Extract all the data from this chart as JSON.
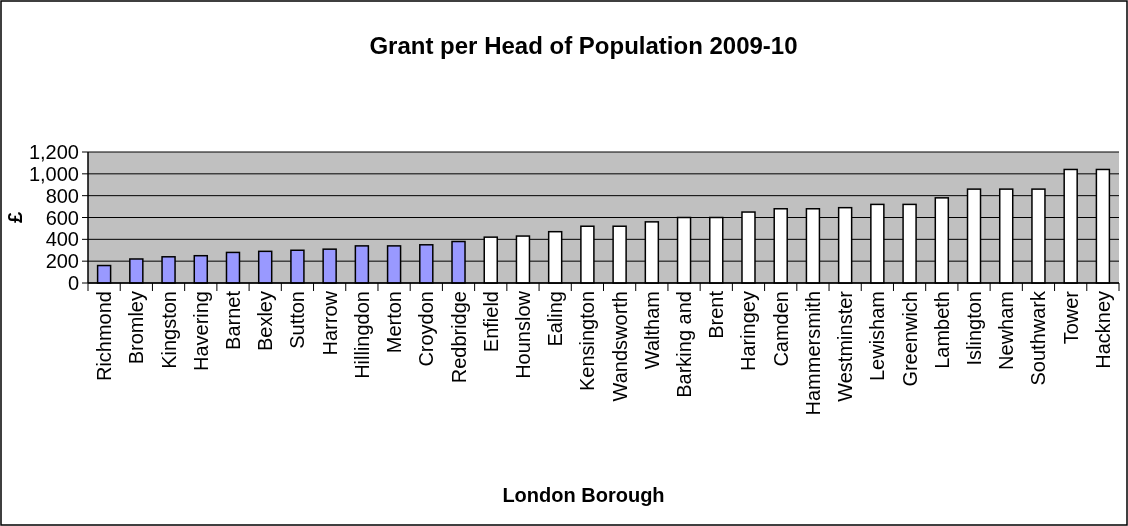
{
  "chart_data": {
    "type": "bar",
    "title": "Grant per Head of Population 2009-10",
    "xlabel": "London Borough",
    "ylabel": "£",
    "categories": [
      "Richmond",
      "Bromley",
      "Kingston",
      "Havering",
      "Barnet",
      "Bexley",
      "Sutton",
      "Harrow",
      "Hillingdon",
      "Merton",
      "Croydon",
      "Redbridge",
      "Enfield",
      "Hounslow",
      "Ealing",
      "Kensington",
      "Wandsworth",
      "Waltham",
      "Barking and",
      "Brent",
      "Haringey",
      "Camden",
      "Hammersmith",
      "Westminster",
      "Lewisham",
      "Greenwich",
      "Lambeth",
      "Islington",
      "Newham",
      "Southwark",
      "Tower",
      "Hackney"
    ],
    "values": [
      160,
      220,
      240,
      250,
      280,
      290,
      300,
      310,
      340,
      340,
      350,
      380,
      420,
      430,
      470,
      520,
      520,
      560,
      600,
      600,
      650,
      680,
      680,
      690,
      720,
      720,
      780,
      860,
      860,
      860,
      1040,
      1040
    ],
    "colors": [
      "#9999ff",
      "#9999ff",
      "#9999ff",
      "#9999ff",
      "#9999ff",
      "#9999ff",
      "#9999ff",
      "#9999ff",
      "#9999ff",
      "#9999ff",
      "#9999ff",
      "#9999ff",
      "#ffffff",
      "#ffffff",
      "#ffffff",
      "#ffffff",
      "#ffffff",
      "#ffffff",
      "#ffffff",
      "#ffffff",
      "#ffffff",
      "#ffffff",
      "#ffffff",
      "#ffffff",
      "#ffffff",
      "#ffffff",
      "#ffffff",
      "#ffffff",
      "#ffffff",
      "#ffffff",
      "#ffffff",
      "#ffffff"
    ],
    "ylim": [
      0,
      1200
    ],
    "yticks": [
      {
        "value": 0,
        "label": "0"
      },
      {
        "value": 200,
        "label": "200"
      },
      {
        "value": 400,
        "label": "400"
      },
      {
        "value": 600,
        "label": "600"
      },
      {
        "value": 800,
        "label": "800"
      },
      {
        "value": 1000,
        "label": "1,000"
      },
      {
        "value": 1200,
        "label": "1,200"
      }
    ],
    "grid": "y"
  }
}
